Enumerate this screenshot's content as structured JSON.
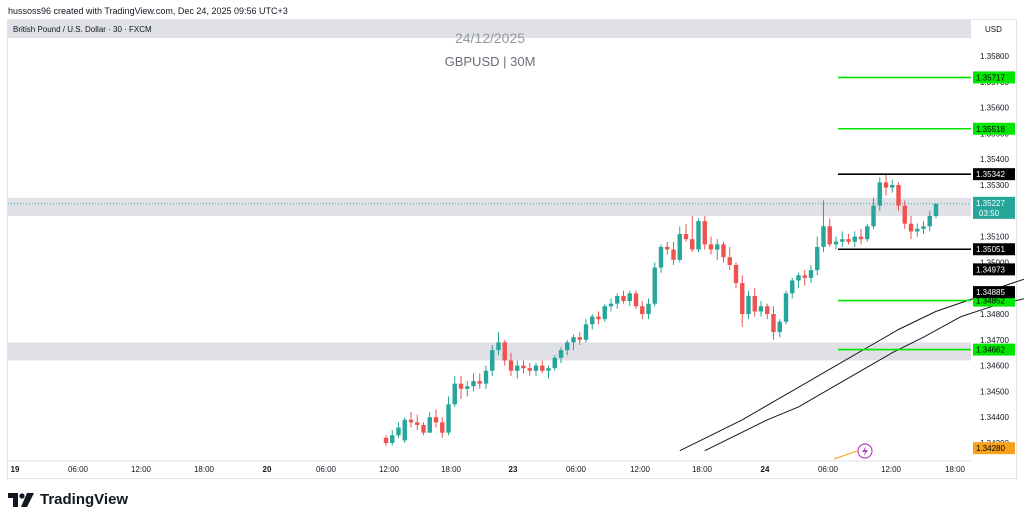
{
  "attribution": "hussoss96 created with TradingView.com, Dec 24, 2025 09:56 UTC+3",
  "symbol_info": "British Pound / U.S. Dollar · 30 · FXCM",
  "currency": "USD",
  "watermark": {
    "date": "24/12/2025",
    "symbol": "GBPUSD | 30M"
  },
  "brand": {
    "name": "TradingView",
    "icon": "tradingview-logo-icon"
  },
  "colors": {
    "up": "#26a69a",
    "down": "#ef5350",
    "green_level": "#00e600",
    "black_level": "#000000",
    "zone": "#dfe1e6",
    "alert": "#b046c1",
    "last_price_bg": "#26a69a",
    "low_price_bg": "#f7a21b"
  },
  "chart_data": {
    "type": "candlestick",
    "x_tick_labels": [
      "19",
      "06:00",
      "12:00",
      "18:00",
      "20",
      "06:00",
      "12:00",
      "18:00",
      "23",
      "06:00",
      "12:00",
      "18:00",
      "24",
      "06:00",
      "12:00",
      "18:00"
    ],
    "y_tick_labels": [
      "1.35800",
      "1.35700",
      "1.35600",
      "1.35500",
      "1.35400",
      "1.35300",
      "1.35100",
      "1.35000",
      "1.34800",
      "1.34700",
      "1.34600",
      "1.34500",
      "1.34400",
      "1.34300"
    ],
    "ylim": [
      1.3425,
      1.3595
    ],
    "candles": [
      {
        "o": 1.3432,
        "h": 1.3433,
        "l": 1.3429,
        "c": 1.343
      },
      {
        "o": 1.343,
        "h": 1.3435,
        "l": 1.3429,
        "c": 1.3433
      },
      {
        "o": 1.3433,
        "h": 1.3438,
        "l": 1.3432,
        "c": 1.3436
      },
      {
        "o": 1.3431,
        "h": 1.344,
        "l": 1.343,
        "c": 1.3439
      },
      {
        "o": 1.3439,
        "h": 1.3442,
        "l": 1.3436,
        "c": 1.3438
      },
      {
        "o": 1.3438,
        "h": 1.3441,
        "l": 1.3435,
        "c": 1.3437
      },
      {
        "o": 1.3437,
        "h": 1.3438,
        "l": 1.3433,
        "c": 1.3434
      },
      {
        "o": 1.3434,
        "h": 1.3442,
        "l": 1.3434,
        "c": 1.344
      },
      {
        "o": 1.344,
        "h": 1.3443,
        "l": 1.3436,
        "c": 1.3438
      },
      {
        "o": 1.3438,
        "h": 1.344,
        "l": 1.3432,
        "c": 1.3434
      },
      {
        "o": 1.3434,
        "h": 1.3448,
        "l": 1.3433,
        "c": 1.3445
      },
      {
        "o": 1.3445,
        "h": 1.3456,
        "l": 1.3444,
        "c": 1.3453
      },
      {
        "o": 1.3453,
        "h": 1.3456,
        "l": 1.3447,
        "c": 1.3451
      },
      {
        "o": 1.3451,
        "h": 1.3454,
        "l": 1.3448,
        "c": 1.3452
      },
      {
        "o": 1.3452,
        "h": 1.3457,
        "l": 1.345,
        "c": 1.3454
      },
      {
        "o": 1.3454,
        "h": 1.3457,
        "l": 1.3451,
        "c": 1.3453
      },
      {
        "o": 1.3453,
        "h": 1.346,
        "l": 1.3451,
        "c": 1.3458
      },
      {
        "o": 1.3458,
        "h": 1.3468,
        "l": 1.3456,
        "c": 1.3466
      },
      {
        "o": 1.3466,
        "h": 1.3473,
        "l": 1.3464,
        "c": 1.3469
      },
      {
        "o": 1.3469,
        "h": 1.347,
        "l": 1.346,
        "c": 1.3462
      },
      {
        "o": 1.3462,
        "h": 1.3465,
        "l": 1.3456,
        "c": 1.3458
      },
      {
        "o": 1.3458,
        "h": 1.3462,
        "l": 1.3455,
        "c": 1.346
      },
      {
        "o": 1.346,
        "h": 1.3462,
        "l": 1.3457,
        "c": 1.3459
      },
      {
        "o": 1.3459,
        "h": 1.3461,
        "l": 1.3456,
        "c": 1.3458
      },
      {
        "o": 1.3458,
        "h": 1.3461,
        "l": 1.3456,
        "c": 1.346
      },
      {
        "o": 1.346,
        "h": 1.3462,
        "l": 1.3457,
        "c": 1.3458
      },
      {
        "o": 1.3458,
        "h": 1.346,
        "l": 1.3455,
        "c": 1.3459
      },
      {
        "o": 1.3459,
        "h": 1.3464,
        "l": 1.3458,
        "c": 1.3463
      },
      {
        "o": 1.3463,
        "h": 1.3467,
        "l": 1.3461,
        "c": 1.3466
      },
      {
        "o": 1.3466,
        "h": 1.347,
        "l": 1.3464,
        "c": 1.3469
      },
      {
        "o": 1.3469,
        "h": 1.3472,
        "l": 1.3466,
        "c": 1.3471
      },
      {
        "o": 1.3471,
        "h": 1.3473,
        "l": 1.3468,
        "c": 1.347
      },
      {
        "o": 1.347,
        "h": 1.3478,
        "l": 1.3469,
        "c": 1.3476
      },
      {
        "o": 1.3476,
        "h": 1.348,
        "l": 1.3474,
        "c": 1.3479
      },
      {
        "o": 1.3479,
        "h": 1.3481,
        "l": 1.3476,
        "c": 1.3478
      },
      {
        "o": 1.3478,
        "h": 1.3484,
        "l": 1.3477,
        "c": 1.3483
      },
      {
        "o": 1.3483,
        "h": 1.3486,
        "l": 1.3481,
        "c": 1.3484
      },
      {
        "o": 1.3484,
        "h": 1.3488,
        "l": 1.3482,
        "c": 1.3487
      },
      {
        "o": 1.3487,
        "h": 1.3489,
        "l": 1.3484,
        "c": 1.3485
      },
      {
        "o": 1.3485,
        "h": 1.3489,
        "l": 1.3483,
        "c": 1.3488
      },
      {
        "o": 1.3488,
        "h": 1.3489,
        "l": 1.3482,
        "c": 1.3483
      },
      {
        "o": 1.3483,
        "h": 1.3485,
        "l": 1.3478,
        "c": 1.348
      },
      {
        "o": 1.348,
        "h": 1.3486,
        "l": 1.3478,
        "c": 1.3484
      },
      {
        "o": 1.3484,
        "h": 1.35,
        "l": 1.3483,
        "c": 1.3498
      },
      {
        "o": 1.3498,
        "h": 1.3507,
        "l": 1.3496,
        "c": 1.3506
      },
      {
        "o": 1.3506,
        "h": 1.3508,
        "l": 1.3503,
        "c": 1.3505
      },
      {
        "o": 1.3505,
        "h": 1.3508,
        "l": 1.3499,
        "c": 1.3501
      },
      {
        "o": 1.3501,
        "h": 1.3514,
        "l": 1.35,
        "c": 1.3511
      },
      {
        "o": 1.3511,
        "h": 1.3515,
        "l": 1.3508,
        "c": 1.3509
      },
      {
        "o": 1.3509,
        "h": 1.3518,
        "l": 1.3504,
        "c": 1.3505
      },
      {
        "o": 1.3505,
        "h": 1.3517,
        "l": 1.3504,
        "c": 1.3516
      },
      {
        "o": 1.3516,
        "h": 1.3518,
        "l": 1.3505,
        "c": 1.3507
      },
      {
        "o": 1.3507,
        "h": 1.351,
        "l": 1.3503,
        "c": 1.3505
      },
      {
        "o": 1.3505,
        "h": 1.3509,
        "l": 1.3501,
        "c": 1.3507
      },
      {
        "o": 1.3507,
        "h": 1.3508,
        "l": 1.35,
        "c": 1.3502
      },
      {
        "o": 1.3502,
        "h": 1.3506,
        "l": 1.3497,
        "c": 1.3499
      },
      {
        "o": 1.3499,
        "h": 1.35,
        "l": 1.349,
        "c": 1.3492
      },
      {
        "o": 1.3492,
        "h": 1.3495,
        "l": 1.3475,
        "c": 1.348
      },
      {
        "o": 1.348,
        "h": 1.3489,
        "l": 1.3478,
        "c": 1.3487
      },
      {
        "o": 1.3487,
        "h": 1.349,
        "l": 1.3479,
        "c": 1.3481
      },
      {
        "o": 1.3481,
        "h": 1.3485,
        "l": 1.3479,
        "c": 1.3483
      },
      {
        "o": 1.3483,
        "h": 1.3484,
        "l": 1.3478,
        "c": 1.348
      },
      {
        "o": 1.348,
        "h": 1.3483,
        "l": 1.347,
        "c": 1.3473
      },
      {
        "o": 1.3473,
        "h": 1.3478,
        "l": 1.3471,
        "c": 1.3477
      },
      {
        "o": 1.3477,
        "h": 1.3489,
        "l": 1.3476,
        "c": 1.3488
      },
      {
        "o": 1.3488,
        "h": 1.3494,
        "l": 1.3486,
        "c": 1.3493
      },
      {
        "o": 1.3493,
        "h": 1.3496,
        "l": 1.349,
        "c": 1.3495
      },
      {
        "o": 1.3495,
        "h": 1.3497,
        "l": 1.3491,
        "c": 1.3494
      },
      {
        "o": 1.3494,
        "h": 1.3499,
        "l": 1.3492,
        "c": 1.3497
      },
      {
        "o": 1.3497,
        "h": 1.351,
        "l": 1.3495,
        "c": 1.3506
      },
      {
        "o": 1.3506,
        "h": 1.3524,
        "l": 1.3504,
        "c": 1.3514
      },
      {
        "o": 1.3514,
        "h": 1.3517,
        "l": 1.3506,
        "c": 1.3507
      },
      {
        "o": 1.3507,
        "h": 1.351,
        "l": 1.3505,
        "c": 1.3508
      },
      {
        "o": 1.3508,
        "h": 1.3512,
        "l": 1.3506,
        "c": 1.3509
      },
      {
        "o": 1.3509,
        "h": 1.3511,
        "l": 1.3507,
        "c": 1.3508
      },
      {
        "o": 1.3508,
        "h": 1.3512,
        "l": 1.3506,
        "c": 1.351
      },
      {
        "o": 1.351,
        "h": 1.3513,
        "l": 1.3507,
        "c": 1.3509
      },
      {
        "o": 1.3509,
        "h": 1.3515,
        "l": 1.3508,
        "c": 1.3514
      },
      {
        "o": 1.3514,
        "h": 1.3525,
        "l": 1.3513,
        "c": 1.3522
      },
      {
        "o": 1.3522,
        "h": 1.3533,
        "l": 1.352,
        "c": 1.3531
      },
      {
        "o": 1.3531,
        "h": 1.3534,
        "l": 1.3526,
        "c": 1.3529
      },
      {
        "o": 1.3529,
        "h": 1.3532,
        "l": 1.3527,
        "c": 1.353
      },
      {
        "o": 1.353,
        "h": 1.3531,
        "l": 1.352,
        "c": 1.3522
      },
      {
        "o": 1.3522,
        "h": 1.3524,
        "l": 1.3513,
        "c": 1.3515
      },
      {
        "o": 1.3515,
        "h": 1.3518,
        "l": 1.3509,
        "c": 1.3512
      },
      {
        "o": 1.3512,
        "h": 1.3515,
        "l": 1.351,
        "c": 1.3513
      },
      {
        "o": 1.3513,
        "h": 1.3516,
        "l": 1.3511,
        "c": 1.3514
      },
      {
        "o": 1.3514,
        "h": 1.352,
        "l": 1.3512,
        "c": 1.3518
      },
      {
        "o": 1.3518,
        "h": 1.3523,
        "l": 1.3517,
        "c": 1.35227
      }
    ],
    "moving_averages": [
      {
        "points": [
          [
            47,
            1.3427
          ],
          [
            52,
            1.3433
          ],
          [
            57,
            1.3439
          ],
          [
            62,
            1.3446
          ],
          [
            67,
            1.3453
          ],
          [
            72,
            1.346
          ],
          [
            77,
            1.3467
          ],
          [
            82,
            1.3474
          ],
          [
            88,
            1.3481
          ],
          [
            94,
            1.3486
          ],
          [
            99,
            1.3491
          ],
          [
            104,
            1.3495
          ]
        ]
      },
      {
        "points": [
          [
            51,
            1.3427
          ],
          [
            56,
            1.3433
          ],
          [
            61,
            1.3439
          ],
          [
            66,
            1.3444
          ],
          [
            71,
            1.3451
          ],
          [
            76,
            1.3458
          ],
          [
            81,
            1.3465
          ],
          [
            86,
            1.3471
          ],
          [
            92,
            1.3479
          ],
          [
            97,
            1.3483
          ],
          [
            104,
            1.3487
          ]
        ]
      }
    ],
    "levels": [
      {
        "price": 1.35717,
        "label": "1.35717",
        "color": "green"
      },
      {
        "price": 1.35518,
        "label": "1.35518",
        "color": "green"
      },
      {
        "price": 1.35342,
        "label": "1.35342",
        "color": "black"
      },
      {
        "price": 1.35051,
        "label": "1.35051",
        "color": "black"
      },
      {
        "price": 1.34852,
        "label": "1.34852",
        "color": "green"
      },
      {
        "price": 1.34662,
        "label": "1.34662",
        "color": "green"
      }
    ],
    "price_labels": [
      {
        "price": 1.34973,
        "label": "1.34973"
      },
      {
        "price": 1.34885,
        "label": "1.34885"
      }
    ],
    "zones": [
      {
        "from": 1.3518,
        "to": 1.3525
      },
      {
        "from": 1.3462,
        "to": 1.3469
      }
    ],
    "last_price": {
      "price": 1.35227,
      "label": "1.35227",
      "countdown": "03:50"
    },
    "low_price_label": {
      "price": 1.3428,
      "label": "1.34280"
    }
  }
}
